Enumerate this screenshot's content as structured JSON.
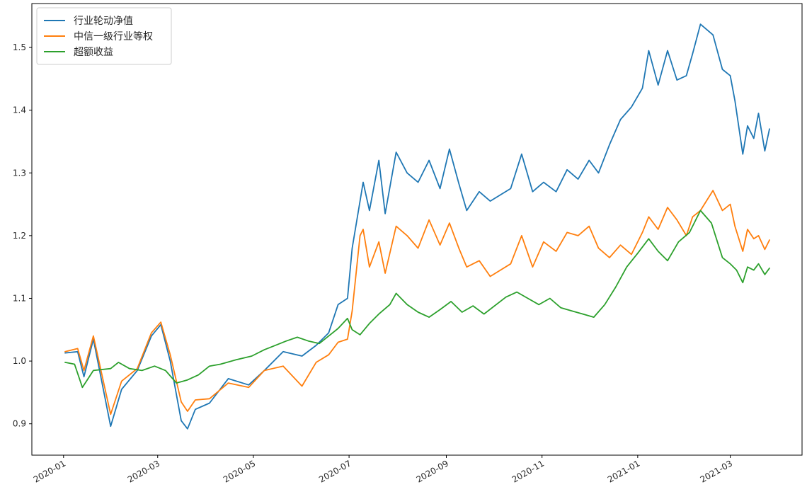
{
  "chart_data": {
    "type": "line",
    "title": "",
    "xlabel": "",
    "ylabel": "",
    "x_date_range": [
      "2020-01-02",
      "2021-03-26"
    ],
    "ylim": [
      0.85,
      1.57
    ],
    "yticks": [
      0.9,
      1.0,
      1.1,
      1.2,
      1.3,
      1.4,
      1.5
    ],
    "ytick_labels": [
      "0.9",
      "1.0",
      "1.1",
      "1.2",
      "1.3",
      "1.4",
      "1.5"
    ],
    "xticks": [
      "2020-01-01",
      "2020-03-01",
      "2020-05-01",
      "2020-07-01",
      "2020-09-01",
      "2020-11-01",
      "2021-01-01",
      "2021-03-01"
    ],
    "xtick_labels": [
      "2020-01",
      "2020-03",
      "2020-05",
      "2020-07",
      "2020-09",
      "2020-11",
      "2021-01",
      "2021-03"
    ],
    "grid": false,
    "legend_position": "upper left",
    "series": [
      {
        "name": "行业轮动净值",
        "color": "#1f77b4",
        "points": [
          [
            "2020-01-02",
            1.013
          ],
          [
            "2020-01-10",
            1.015
          ],
          [
            "2020-01-14",
            0.975
          ],
          [
            "2020-01-20",
            1.035
          ],
          [
            "2020-01-31",
            0.896
          ],
          [
            "2020-02-07",
            0.955
          ],
          [
            "2020-02-17",
            0.985
          ],
          [
            "2020-02-26",
            1.04
          ],
          [
            "2020-03-03",
            1.058
          ],
          [
            "2020-03-09",
            1.0
          ],
          [
            "2020-03-16",
            0.905
          ],
          [
            "2020-03-20",
            0.892
          ],
          [
            "2020-03-25",
            0.923
          ],
          [
            "2020-04-03",
            0.933
          ],
          [
            "2020-04-15",
            0.972
          ],
          [
            "2020-04-28",
            0.962
          ],
          [
            "2020-05-08",
            0.985
          ],
          [
            "2020-05-20",
            1.015
          ],
          [
            "2020-06-01",
            1.008
          ],
          [
            "2020-06-10",
            1.025
          ],
          [
            "2020-06-18",
            1.045
          ],
          [
            "2020-06-24",
            1.09
          ],
          [
            "2020-06-30",
            1.1
          ],
          [
            "2020-07-03",
            1.18
          ],
          [
            "2020-07-08",
            1.255
          ],
          [
            "2020-07-10",
            1.285
          ],
          [
            "2020-07-14",
            1.24
          ],
          [
            "2020-07-20",
            1.32
          ],
          [
            "2020-07-24",
            1.235
          ],
          [
            "2020-07-31",
            1.333
          ],
          [
            "2020-08-07",
            1.3
          ],
          [
            "2020-08-14",
            1.285
          ],
          [
            "2020-08-21",
            1.32
          ],
          [
            "2020-08-28",
            1.275
          ],
          [
            "2020-09-03",
            1.338
          ],
          [
            "2020-09-09",
            1.283
          ],
          [
            "2020-09-14",
            1.24
          ],
          [
            "2020-09-22",
            1.27
          ],
          [
            "2020-09-29",
            1.255
          ],
          [
            "2020-10-12",
            1.275
          ],
          [
            "2020-10-19",
            1.33
          ],
          [
            "2020-10-26",
            1.27
          ],
          [
            "2020-11-02",
            1.285
          ],
          [
            "2020-11-10",
            1.27
          ],
          [
            "2020-11-17",
            1.305
          ],
          [
            "2020-11-24",
            1.29
          ],
          [
            "2020-12-01",
            1.32
          ],
          [
            "2020-12-07",
            1.3
          ],
          [
            "2020-12-14",
            1.345
          ],
          [
            "2020-12-21",
            1.385
          ],
          [
            "2020-12-28",
            1.405
          ],
          [
            "2021-01-04",
            1.435
          ],
          [
            "2021-01-08",
            1.495
          ],
          [
            "2021-01-14",
            1.44
          ],
          [
            "2021-01-20",
            1.495
          ],
          [
            "2021-01-26",
            1.448
          ],
          [
            "2021-02-01",
            1.455
          ],
          [
            "2021-02-05",
            1.49
          ],
          [
            "2021-02-10",
            1.537
          ],
          [
            "2021-02-18",
            1.52
          ],
          [
            "2021-02-24",
            1.465
          ],
          [
            "2021-03-01",
            1.455
          ],
          [
            "2021-03-04",
            1.415
          ],
          [
            "2021-03-09",
            1.33
          ],
          [
            "2021-03-12",
            1.375
          ],
          [
            "2021-03-16",
            1.355
          ],
          [
            "2021-03-19",
            1.395
          ],
          [
            "2021-03-23",
            1.335
          ],
          [
            "2021-03-26",
            1.37
          ]
        ]
      },
      {
        "name": "中信一级行业等权",
        "color": "#ff7f0e",
        "points": [
          [
            "2020-01-02",
            1.015
          ],
          [
            "2020-01-10",
            1.02
          ],
          [
            "2020-01-14",
            0.985
          ],
          [
            "2020-01-20",
            1.04
          ],
          [
            "2020-01-31",
            0.915
          ],
          [
            "2020-02-07",
            0.968
          ],
          [
            "2020-02-17",
            0.988
          ],
          [
            "2020-02-26",
            1.045
          ],
          [
            "2020-03-03",
            1.062
          ],
          [
            "2020-03-09",
            1.01
          ],
          [
            "2020-03-16",
            0.935
          ],
          [
            "2020-03-20",
            0.92
          ],
          [
            "2020-03-25",
            0.938
          ],
          [
            "2020-04-03",
            0.94
          ],
          [
            "2020-04-15",
            0.965
          ],
          [
            "2020-04-28",
            0.958
          ],
          [
            "2020-05-08",
            0.985
          ],
          [
            "2020-05-20",
            0.992
          ],
          [
            "2020-06-01",
            0.96
          ],
          [
            "2020-06-10",
            0.998
          ],
          [
            "2020-06-18",
            1.01
          ],
          [
            "2020-06-24",
            1.03
          ],
          [
            "2020-06-30",
            1.035
          ],
          [
            "2020-07-03",
            1.08
          ],
          [
            "2020-07-08",
            1.2
          ],
          [
            "2020-07-10",
            1.21
          ],
          [
            "2020-07-14",
            1.15
          ],
          [
            "2020-07-20",
            1.19
          ],
          [
            "2020-07-24",
            1.14
          ],
          [
            "2020-07-31",
            1.215
          ],
          [
            "2020-08-07",
            1.2
          ],
          [
            "2020-08-14",
            1.18
          ],
          [
            "2020-08-21",
            1.225
          ],
          [
            "2020-08-28",
            1.185
          ],
          [
            "2020-09-03",
            1.22
          ],
          [
            "2020-09-09",
            1.18
          ],
          [
            "2020-09-14",
            1.15
          ],
          [
            "2020-09-22",
            1.16
          ],
          [
            "2020-09-29",
            1.135
          ],
          [
            "2020-10-12",
            1.155
          ],
          [
            "2020-10-19",
            1.2
          ],
          [
            "2020-10-26",
            1.15
          ],
          [
            "2020-11-02",
            1.19
          ],
          [
            "2020-11-10",
            1.175
          ],
          [
            "2020-11-17",
            1.205
          ],
          [
            "2020-11-24",
            1.2
          ],
          [
            "2020-12-01",
            1.215
          ],
          [
            "2020-12-07",
            1.18
          ],
          [
            "2020-12-14",
            1.165
          ],
          [
            "2020-12-21",
            1.185
          ],
          [
            "2020-12-28",
            1.17
          ],
          [
            "2021-01-04",
            1.205
          ],
          [
            "2021-01-08",
            1.23
          ],
          [
            "2021-01-14",
            1.21
          ],
          [
            "2021-01-20",
            1.245
          ],
          [
            "2021-01-26",
            1.225
          ],
          [
            "2021-02-01",
            1.2
          ],
          [
            "2021-02-05",
            1.23
          ],
          [
            "2021-02-10",
            1.24
          ],
          [
            "2021-02-18",
            1.272
          ],
          [
            "2021-02-24",
            1.24
          ],
          [
            "2021-03-01",
            1.25
          ],
          [
            "2021-03-04",
            1.215
          ],
          [
            "2021-03-09",
            1.175
          ],
          [
            "2021-03-12",
            1.21
          ],
          [
            "2021-03-16",
            1.195
          ],
          [
            "2021-03-19",
            1.2
          ],
          [
            "2021-03-23",
            1.178
          ],
          [
            "2021-03-26",
            1.193
          ]
        ]
      },
      {
        "name": "超额收益",
        "color": "#2ca02c",
        "points": [
          [
            "2020-01-02",
            0.998
          ],
          [
            "2020-01-08",
            0.995
          ],
          [
            "2020-01-13",
            0.958
          ],
          [
            "2020-01-20",
            0.985
          ],
          [
            "2020-01-31",
            0.988
          ],
          [
            "2020-02-05",
            0.998
          ],
          [
            "2020-02-12",
            0.988
          ],
          [
            "2020-02-20",
            0.985
          ],
          [
            "2020-02-28",
            0.992
          ],
          [
            "2020-03-06",
            0.985
          ],
          [
            "2020-03-13",
            0.965
          ],
          [
            "2020-03-20",
            0.97
          ],
          [
            "2020-03-27",
            0.978
          ],
          [
            "2020-04-03",
            0.992
          ],
          [
            "2020-04-10",
            0.995
          ],
          [
            "2020-04-20",
            1.002
          ],
          [
            "2020-04-30",
            1.008
          ],
          [
            "2020-05-08",
            1.018
          ],
          [
            "2020-05-15",
            1.025
          ],
          [
            "2020-05-22",
            1.032
          ],
          [
            "2020-05-29",
            1.038
          ],
          [
            "2020-06-05",
            1.032
          ],
          [
            "2020-06-12",
            1.028
          ],
          [
            "2020-06-19",
            1.042
          ],
          [
            "2020-06-24",
            1.052
          ],
          [
            "2020-06-30",
            1.068
          ],
          [
            "2020-07-03",
            1.05
          ],
          [
            "2020-07-08",
            1.042
          ],
          [
            "2020-07-14",
            1.06
          ],
          [
            "2020-07-20",
            1.075
          ],
          [
            "2020-07-27",
            1.09
          ],
          [
            "2020-07-31",
            1.108
          ],
          [
            "2020-08-07",
            1.09
          ],
          [
            "2020-08-14",
            1.078
          ],
          [
            "2020-08-21",
            1.07
          ],
          [
            "2020-08-28",
            1.082
          ],
          [
            "2020-09-04",
            1.095
          ],
          [
            "2020-09-11",
            1.078
          ],
          [
            "2020-09-18",
            1.088
          ],
          [
            "2020-09-25",
            1.075
          ],
          [
            "2020-10-09",
            1.102
          ],
          [
            "2020-10-16",
            1.11
          ],
          [
            "2020-10-23",
            1.1
          ],
          [
            "2020-10-30",
            1.09
          ],
          [
            "2020-11-06",
            1.1
          ],
          [
            "2020-11-13",
            1.085
          ],
          [
            "2020-11-20",
            1.08
          ],
          [
            "2020-11-27",
            1.075
          ],
          [
            "2020-12-04",
            1.07
          ],
          [
            "2020-12-11",
            1.09
          ],
          [
            "2020-12-18",
            1.118
          ],
          [
            "2020-12-25",
            1.15
          ],
          [
            "2021-01-01",
            1.172
          ],
          [
            "2021-01-08",
            1.195
          ],
          [
            "2021-01-14",
            1.175
          ],
          [
            "2021-01-20",
            1.16
          ],
          [
            "2021-01-27",
            1.19
          ],
          [
            "2021-02-03",
            1.205
          ],
          [
            "2021-02-10",
            1.24
          ],
          [
            "2021-02-17",
            1.22
          ],
          [
            "2021-02-24",
            1.165
          ],
          [
            "2021-03-01",
            1.155
          ],
          [
            "2021-03-05",
            1.145
          ],
          [
            "2021-03-09",
            1.125
          ],
          [
            "2021-03-12",
            1.15
          ],
          [
            "2021-03-16",
            1.145
          ],
          [
            "2021-03-19",
            1.155
          ],
          [
            "2021-03-23",
            1.138
          ],
          [
            "2021-03-26",
            1.148
          ]
        ]
      }
    ]
  }
}
